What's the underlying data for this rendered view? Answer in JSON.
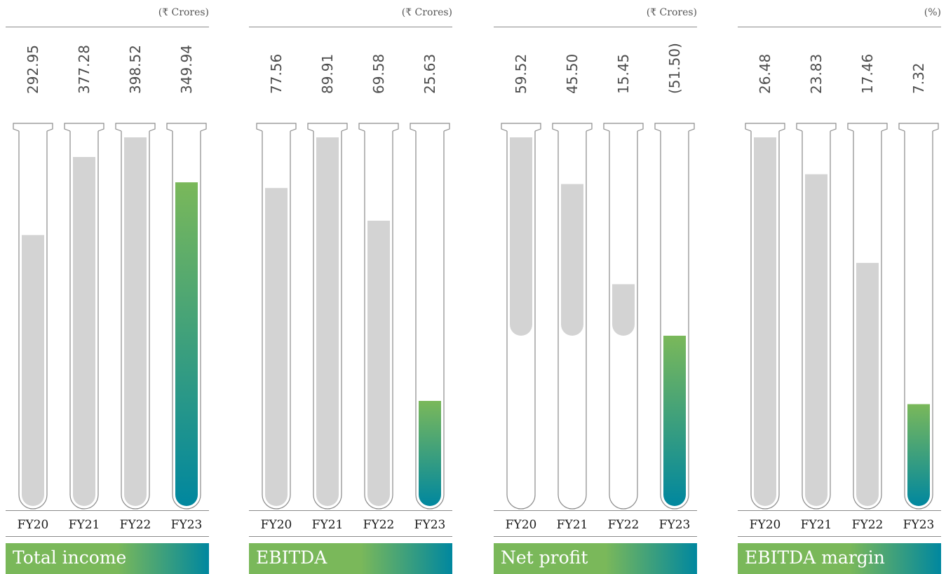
{
  "colors": {
    "tube_outline": "#8a8a8a",
    "bar_gray": "#d3d3d3",
    "gradient_top": "#7ab85a",
    "gradient_bottom": "#00879f",
    "banner_left": "#7ab85a",
    "banner_right": "#00879f"
  },
  "chart_data": [
    {
      "type": "bar",
      "title": "Total income",
      "unit": "(₹ Crores)",
      "categories": [
        "FY20",
        "FY21",
        "FY22",
        "FY23"
      ],
      "values": [
        292.95,
        377.28,
        398.52,
        349.94
      ],
      "value_labels": [
        "292.95",
        "377.28",
        "398.52",
        "349.94"
      ],
      "highlight": "FY23",
      "ylim": [
        0,
        400
      ]
    },
    {
      "type": "bar",
      "title": "EBITDA",
      "unit": "(₹ Crores)",
      "categories": [
        "FY20",
        "FY21",
        "FY22",
        "FY23"
      ],
      "values": [
        77.56,
        89.91,
        69.58,
        25.63
      ],
      "value_labels": [
        "77.56",
        "89.91",
        "69.58",
        "25.63"
      ],
      "highlight": "FY23",
      "ylim": [
        0,
        90
      ]
    },
    {
      "type": "bar",
      "title": "Net profit",
      "unit": "(₹ Crores)",
      "categories": [
        "FY20",
        "FY21",
        "FY22",
        "FY23"
      ],
      "values": [
        59.52,
        45.5,
        15.45,
        -51.5
      ],
      "value_labels": [
        "59.52",
        "45.50",
        "15.45",
        "(51.50)"
      ],
      "highlight": "FY23",
      "ylim": [
        -60,
        60
      ]
    },
    {
      "type": "bar",
      "title": "EBITDA margin",
      "unit": "(%)",
      "categories": [
        "FY20",
        "FY21",
        "FY22",
        "FY23"
      ],
      "values": [
        26.48,
        23.83,
        17.46,
        7.32
      ],
      "value_labels": [
        "26.48",
        "23.83",
        "17.46",
        "7.32"
      ],
      "highlight": "FY23",
      "ylim": [
        0,
        26.5
      ]
    }
  ]
}
